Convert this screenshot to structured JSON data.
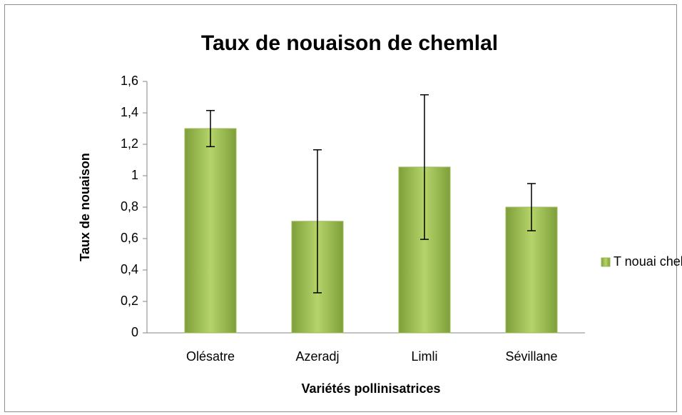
{
  "chart_data": {
    "type": "bar",
    "title": "Taux de nouaison de  chemlal",
    "x_label": "Variétés pollinisatrices",
    "y_label": "Taux de nouaison",
    "categories": [
      "Olésatre",
      "Azeradj",
      "Limli",
      "Sévillane"
    ],
    "series": [
      {
        "name": "T nouai chel",
        "color": "#9bbb59",
        "values": [
          1.3,
          0.71,
          1.055,
          0.8
        ],
        "errors": [
          0.115,
          0.455,
          0.46,
          0.15
        ]
      }
    ],
    "ylim": [
      0,
      1.6
    ],
    "yticks": [
      0,
      {
        "value": 0.2,
        "label": "0,2"
      },
      {
        "value": 0.4,
        "label": "0,4"
      },
      {
        "value": 0.6,
        "label": "0,6"
      },
      {
        "value": 0.8,
        "label": "0,8"
      },
      1,
      {
        "value": 1.2,
        "label": "1,2"
      },
      {
        "value": 1.4,
        "label": "1,4"
      },
      {
        "value": 1.6,
        "label": "1,6"
      }
    ],
    "grid": false,
    "legend": "right"
  }
}
